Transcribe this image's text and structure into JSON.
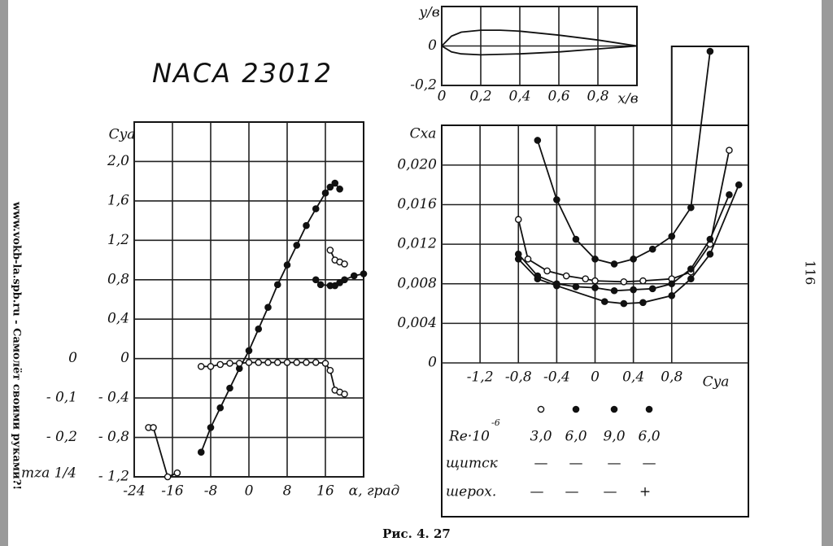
{
  "title": "NACA 23012",
  "caption": "Рис.  4. 27",
  "page_number": "116",
  "side_text": "www.vokb-la.spb.ru - Самолёт своими руками?!",
  "chart_data": [
    {
      "type": "line",
      "x_label": "x/в",
      "y_label": "y/в",
      "xlim": [
        0,
        1
      ],
      "ylim": [
        -0.2,
        0.2
      ],
      "xticks": [
        0,
        {
          "value": 0.2,
          "label": "0,2"
        },
        {
          "value": 0.4,
          "label": "0,4"
        },
        {
          "value": 0.6,
          "label": "0,6"
        },
        {
          "value": 0.8,
          "label": "0,8"
        }
      ],
      "yticks": [
        {
          "value": -0.2,
          "label": "-0,2"
        },
        0
      ],
      "grid": true,
      "series": [
        {
          "color": "#111",
          "marker": "none",
          "x": [
            0,
            0.05,
            0.1,
            0.2,
            0.3,
            0.4,
            0.6,
            0.8,
            1.0
          ],
          "values": [
            0,
            0.05,
            0.07,
            0.08,
            0.08,
            0.075,
            0.055,
            0.03,
            0
          ]
        },
        {
          "color": "#111",
          "marker": "none",
          "x": [
            0,
            0.05,
            0.1,
            0.2,
            0.4,
            0.6,
            0.8,
            1.0
          ],
          "values": [
            0,
            -0.03,
            -0.04,
            -0.045,
            -0.04,
            -0.03,
            -0.015,
            0
          ]
        }
      ]
    },
    {
      "type": "line",
      "x_label": "α, град",
      "y_label": "Cya",
      "y2_label": "mza 1/4",
      "xlim": [
        -24,
        24
      ],
      "ylim": [
        -1.2,
        2.4
      ],
      "y2lim": [
        -0.3,
        0.6
      ],
      "xticks": [
        -24,
        -16,
        -8,
        0,
        8,
        16
      ],
      "yticks": [
        {
          "value": -1.2,
          "label": "- 1,2"
        },
        {
          "value": -0.8,
          "label": "- 0,8"
        },
        {
          "value": -0.4,
          "label": "- 0,4"
        },
        0,
        {
          "value": 0.4,
          "label": "0,4"
        },
        {
          "value": 0.8,
          "label": "0,8"
        },
        {
          "value": 1.2,
          "label": "1,2"
        },
        {
          "value": 1.6,
          "label": "1,6"
        },
        {
          "value": 2.0,
          "label": "2,0"
        }
      ],
      "y2ticks": [
        {
          "value": -0.2,
          "label": "- 0,2"
        },
        {
          "value": -0.1,
          "label": "- 0,1"
        },
        0
      ],
      "grid": true,
      "series": [
        {
          "color": "#111",
          "marker": "filled",
          "x": [
            -10,
            -8,
            -6,
            -4,
            -2,
            0,
            2,
            4,
            6,
            8,
            10,
            12,
            14,
            16,
            17,
            18,
            19
          ],
          "values": [
            -0.95,
            -0.7,
            -0.5,
            -0.3,
            -0.1,
            0.08,
            0.3,
            0.52,
            0.75,
            0.95,
            1.15,
            1.35,
            1.52,
            1.68,
            1.74,
            1.78,
            1.72
          ]
        },
        {
          "color": "#111",
          "marker": "filled",
          "x": [
            14,
            15,
            17,
            18,
            19,
            20,
            22,
            24
          ],
          "values": [
            0.8,
            0.75,
            0.74,
            0.74,
            0.77,
            0.8,
            0.84,
            0.86
          ]
        },
        {
          "color": "#111",
          "marker": "open",
          "x": [
            17,
            18,
            19,
            20
          ],
          "values": [
            1.1,
            1.0,
            0.98,
            0.96
          ]
        },
        {
          "color": "#111",
          "marker": "open",
          "axis": "y2",
          "x": [
            -10,
            -8,
            -6,
            -4,
            -2,
            0,
            2,
            4,
            6,
            8,
            10,
            12,
            14,
            16,
            17,
            18,
            19,
            20
          ],
          "values": [
            -0.02,
            -0.02,
            -0.015,
            -0.012,
            -0.012,
            -0.01,
            -0.01,
            -0.01,
            -0.01,
            -0.01,
            -0.01,
            -0.01,
            -0.01,
            -0.012,
            -0.03,
            -0.08,
            -0.085,
            -0.09
          ]
        },
        {
          "color": "#111",
          "marker": "open",
          "axis": "y2",
          "x": [
            -21,
            -20,
            -17,
            -15
          ],
          "values": [
            -0.175,
            -0.175,
            -0.3,
            -0.29
          ]
        }
      ]
    },
    {
      "type": "line",
      "x_label": "Cya",
      "y_label": "Cxa",
      "xlim": [
        -1.6,
        1.6
      ],
      "ylim": [
        0,
        0.032
      ],
      "xticks": [
        {
          "value": -1.2,
          "label": "-1,2"
        },
        {
          "value": -0.8,
          "label": "-0,8"
        },
        {
          "value": -0.4,
          "label": "-0,4"
        },
        0,
        {
          "value": 0.4,
          "label": "0,4"
        },
        {
          "value": 0.8,
          "label": "0,8"
        }
      ],
      "yticks": [
        0,
        {
          "value": 0.004,
          "label": "0,004"
        },
        {
          "value": 0.008,
          "label": "0,008"
        },
        {
          "value": 0.012,
          "label": "0,012"
        },
        {
          "value": 0.016,
          "label": "0,016"
        },
        {
          "value": 0.02,
          "label": "0,020"
        }
      ],
      "grid": true,
      "series": [
        {
          "color": "#111",
          "marker": "open",
          "x": [
            -0.8,
            -0.7,
            -0.5,
            -0.3,
            -0.1,
            0,
            0.3,
            0.5,
            0.8,
            1.0,
            1.2,
            1.4
          ],
          "values": [
            0.0145,
            0.0105,
            0.0093,
            0.0088,
            0.0085,
            0.0083,
            0.0082,
            0.0083,
            0.0085,
            0.0092,
            0.012,
            0.0215
          ]
        },
        {
          "color": "#111",
          "marker": "filled",
          "x": [
            -0.8,
            -0.6,
            -0.4,
            -0.2,
            0,
            0.2,
            0.4,
            0.6,
            0.8,
            1.0,
            1.2,
            1.4
          ],
          "values": [
            0.011,
            0.0088,
            0.008,
            0.0077,
            0.0076,
            0.0073,
            0.0074,
            0.0075,
            0.008,
            0.0095,
            0.0125,
            0.017
          ]
        },
        {
          "color": "#111",
          "marker": "filled",
          "x": [
            -0.8,
            -0.6,
            -0.4,
            0.1,
            0.3,
            0.5,
            0.8,
            1.0,
            1.2,
            1.5
          ],
          "values": [
            0.0105,
            0.0085,
            0.0078,
            0.0062,
            0.006,
            0.0061,
            0.0068,
            0.0085,
            0.011,
            0.018
          ]
        },
        {
          "color": "#111",
          "marker": "filled",
          "x": [
            -0.6,
            -0.4,
            -0.2,
            0,
            0.2,
            0.4,
            0.6,
            0.8,
            1.0,
            1.2
          ],
          "values": [
            0.0225,
            0.0165,
            0.0125,
            0.0105,
            0.01,
            0.0105,
            0.0115,
            0.0128,
            0.0157,
            0.0315
          ]
        }
      ]
    }
  ],
  "legend": {
    "re_label": "Re·10",
    "re_exponent": "-6",
    "re_values": [
      "3,0",
      "6,0",
      "9,0",
      "6,0"
    ],
    "flap_label": "щитск",
    "flap_values": [
      "—",
      "—",
      "—",
      "—"
    ],
    "rough_label": "шерох.",
    "rough_values": [
      "—",
      "—",
      "—",
      "+"
    ]
  }
}
